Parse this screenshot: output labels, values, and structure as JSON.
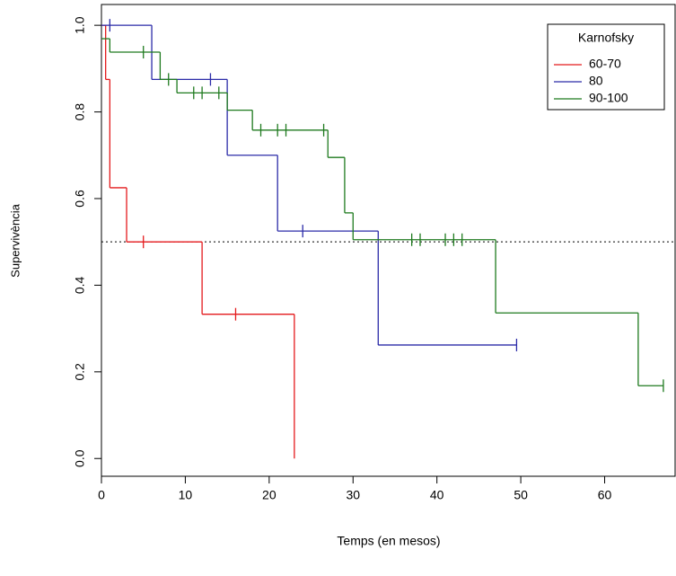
{
  "chart_data": {
    "type": "km",
    "xlabel": "Temps (en mesos)",
    "ylabel": "Supervivència",
    "xlim": [
      0,
      68.4
    ],
    "ylim": [
      -0.041,
      1.048
    ],
    "xticks": [
      0,
      10,
      20,
      30,
      40,
      50,
      60
    ],
    "yticks": [
      {
        "value": 0,
        "label": "0.0"
      },
      0.2,
      0.4,
      0.6,
      0.8,
      {
        "value": 1,
        "label": "1.0"
      }
    ],
    "hline": 0.5,
    "legend_title": "Karnofsky",
    "legend_position": "top-right",
    "series": [
      {
        "name": "60-70",
        "color": "#e41a1c",
        "x": [
          0,
          0.5,
          1,
          3,
          12,
          23
        ],
        "values": [
          1,
          0.875,
          0.625,
          0.5,
          0.333,
          0
        ],
        "censor_x": [
          5,
          16
        ],
        "censor_values": [
          0.5,
          0.333
        ]
      },
      {
        "name": "80",
        "color": "#2b2ba8",
        "x": [
          0,
          6,
          15,
          21,
          33
        ],
        "values": [
          1,
          0.875,
          0.7,
          0.525,
          0.262
        ],
        "censor_x": [
          1,
          13,
          24,
          49.5
        ],
        "censor_values": [
          1,
          0.875,
          0.525,
          0.262
        ]
      },
      {
        "name": "90-100",
        "color": "#1e7a1e",
        "x": [
          0,
          1,
          7,
          9,
          15,
          18,
          27,
          29,
          30,
          47,
          64
        ],
        "values": [
          0.969,
          0.938,
          0.875,
          0.844,
          0.804,
          0.758,
          0.695,
          0.567,
          0.505,
          0.336,
          0.168
        ],
        "censor_x": [
          5,
          8,
          11,
          12,
          14,
          19,
          21,
          22,
          26.5,
          37,
          38,
          41,
          42,
          43,
          67
        ],
        "censor_values": [
          0.938,
          0.875,
          0.844,
          0.844,
          0.844,
          0.758,
          0.758,
          0.758,
          0.758,
          0.505,
          0.505,
          0.505,
          0.505,
          0.505,
          0.168
        ]
      }
    ]
  }
}
